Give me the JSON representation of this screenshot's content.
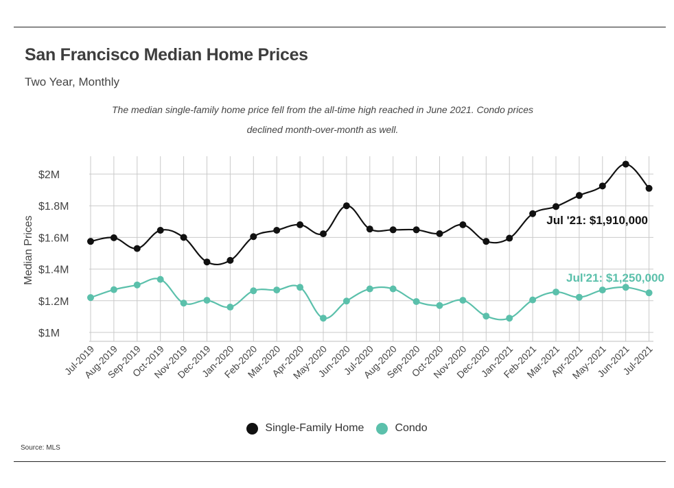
{
  "header": {
    "title": "San Francisco Median Home Prices",
    "subtitle": "Two Year, Monthly",
    "note": "The median single-family home price fell from the all-time high reached in June 2021. Condo prices declined month-over-month as well."
  },
  "source": "Source:  MLS",
  "colors": {
    "single_family": "#111111",
    "condo": "#5bc0ab",
    "grid": "#c9c9c9"
  },
  "chart_data": {
    "type": "line",
    "title": "San Francisco Median Home Prices",
    "subtitle": "Two Year, Monthly",
    "ylabel": "Median Prices",
    "xlabel": "",
    "ylim": [
      1000000,
      2100000
    ],
    "yticks": [
      {
        "value": 1000000,
        "label": "$1M"
      },
      {
        "value": 1200000,
        "label": "$1.2M"
      },
      {
        "value": 1400000,
        "label": "$1.4M"
      },
      {
        "value": 1600000,
        "label": "$1.6M"
      },
      {
        "value": 1800000,
        "label": "$1.8M"
      },
      {
        "value": 2000000,
        "label": "$2M"
      }
    ],
    "grid": true,
    "legend_position": "bottom",
    "categories": [
      "Jul-2019",
      "Aug-2019",
      "Sep-2019",
      "Oct-2019",
      "Nov-2019",
      "Dec-2019",
      "Jan-2020",
      "Feb-2020",
      "Mar-2020",
      "Apr-2020",
      "May-2020",
      "Jun-2020",
      "Jul-2020",
      "Aug-2020",
      "Sep-2020",
      "Oct-2020",
      "Nov-2020",
      "Dec-2020",
      "Jan-2021",
      "Feb-2021",
      "Mar-2021",
      "Apr-2021",
      "May-2021",
      "Jun-2021",
      "Jul-2021"
    ],
    "series": [
      {
        "name": "Single-Family Home",
        "color": "#111111",
        "values": [
          1575000,
          1598000,
          1530000,
          1645000,
          1600000,
          1445000,
          1455000,
          1605000,
          1645000,
          1680000,
          1623000,
          1800000,
          1653000,
          1648000,
          1648000,
          1624000,
          1680000,
          1575000,
          1595000,
          1750000,
          1795000,
          1865000,
          1925000,
          2063000,
          1910000
        ]
      },
      {
        "name": "Condo",
        "color": "#5bc0ab",
        "values": [
          1220000,
          1270000,
          1300000,
          1335000,
          1185000,
          1203000,
          1160000,
          1263000,
          1268000,
          1285000,
          1090000,
          1198000,
          1275000,
          1275000,
          1195000,
          1170000,
          1203000,
          1103000,
          1090000,
          1205000,
          1255000,
          1222000,
          1268000,
          1285000,
          1250000
        ]
      }
    ],
    "annotations": [
      {
        "series": "Single-Family Home",
        "text": "Jul '21: $1,910,000"
      },
      {
        "series": "Condo",
        "text": "Jul'21: $1,250,000"
      }
    ]
  }
}
